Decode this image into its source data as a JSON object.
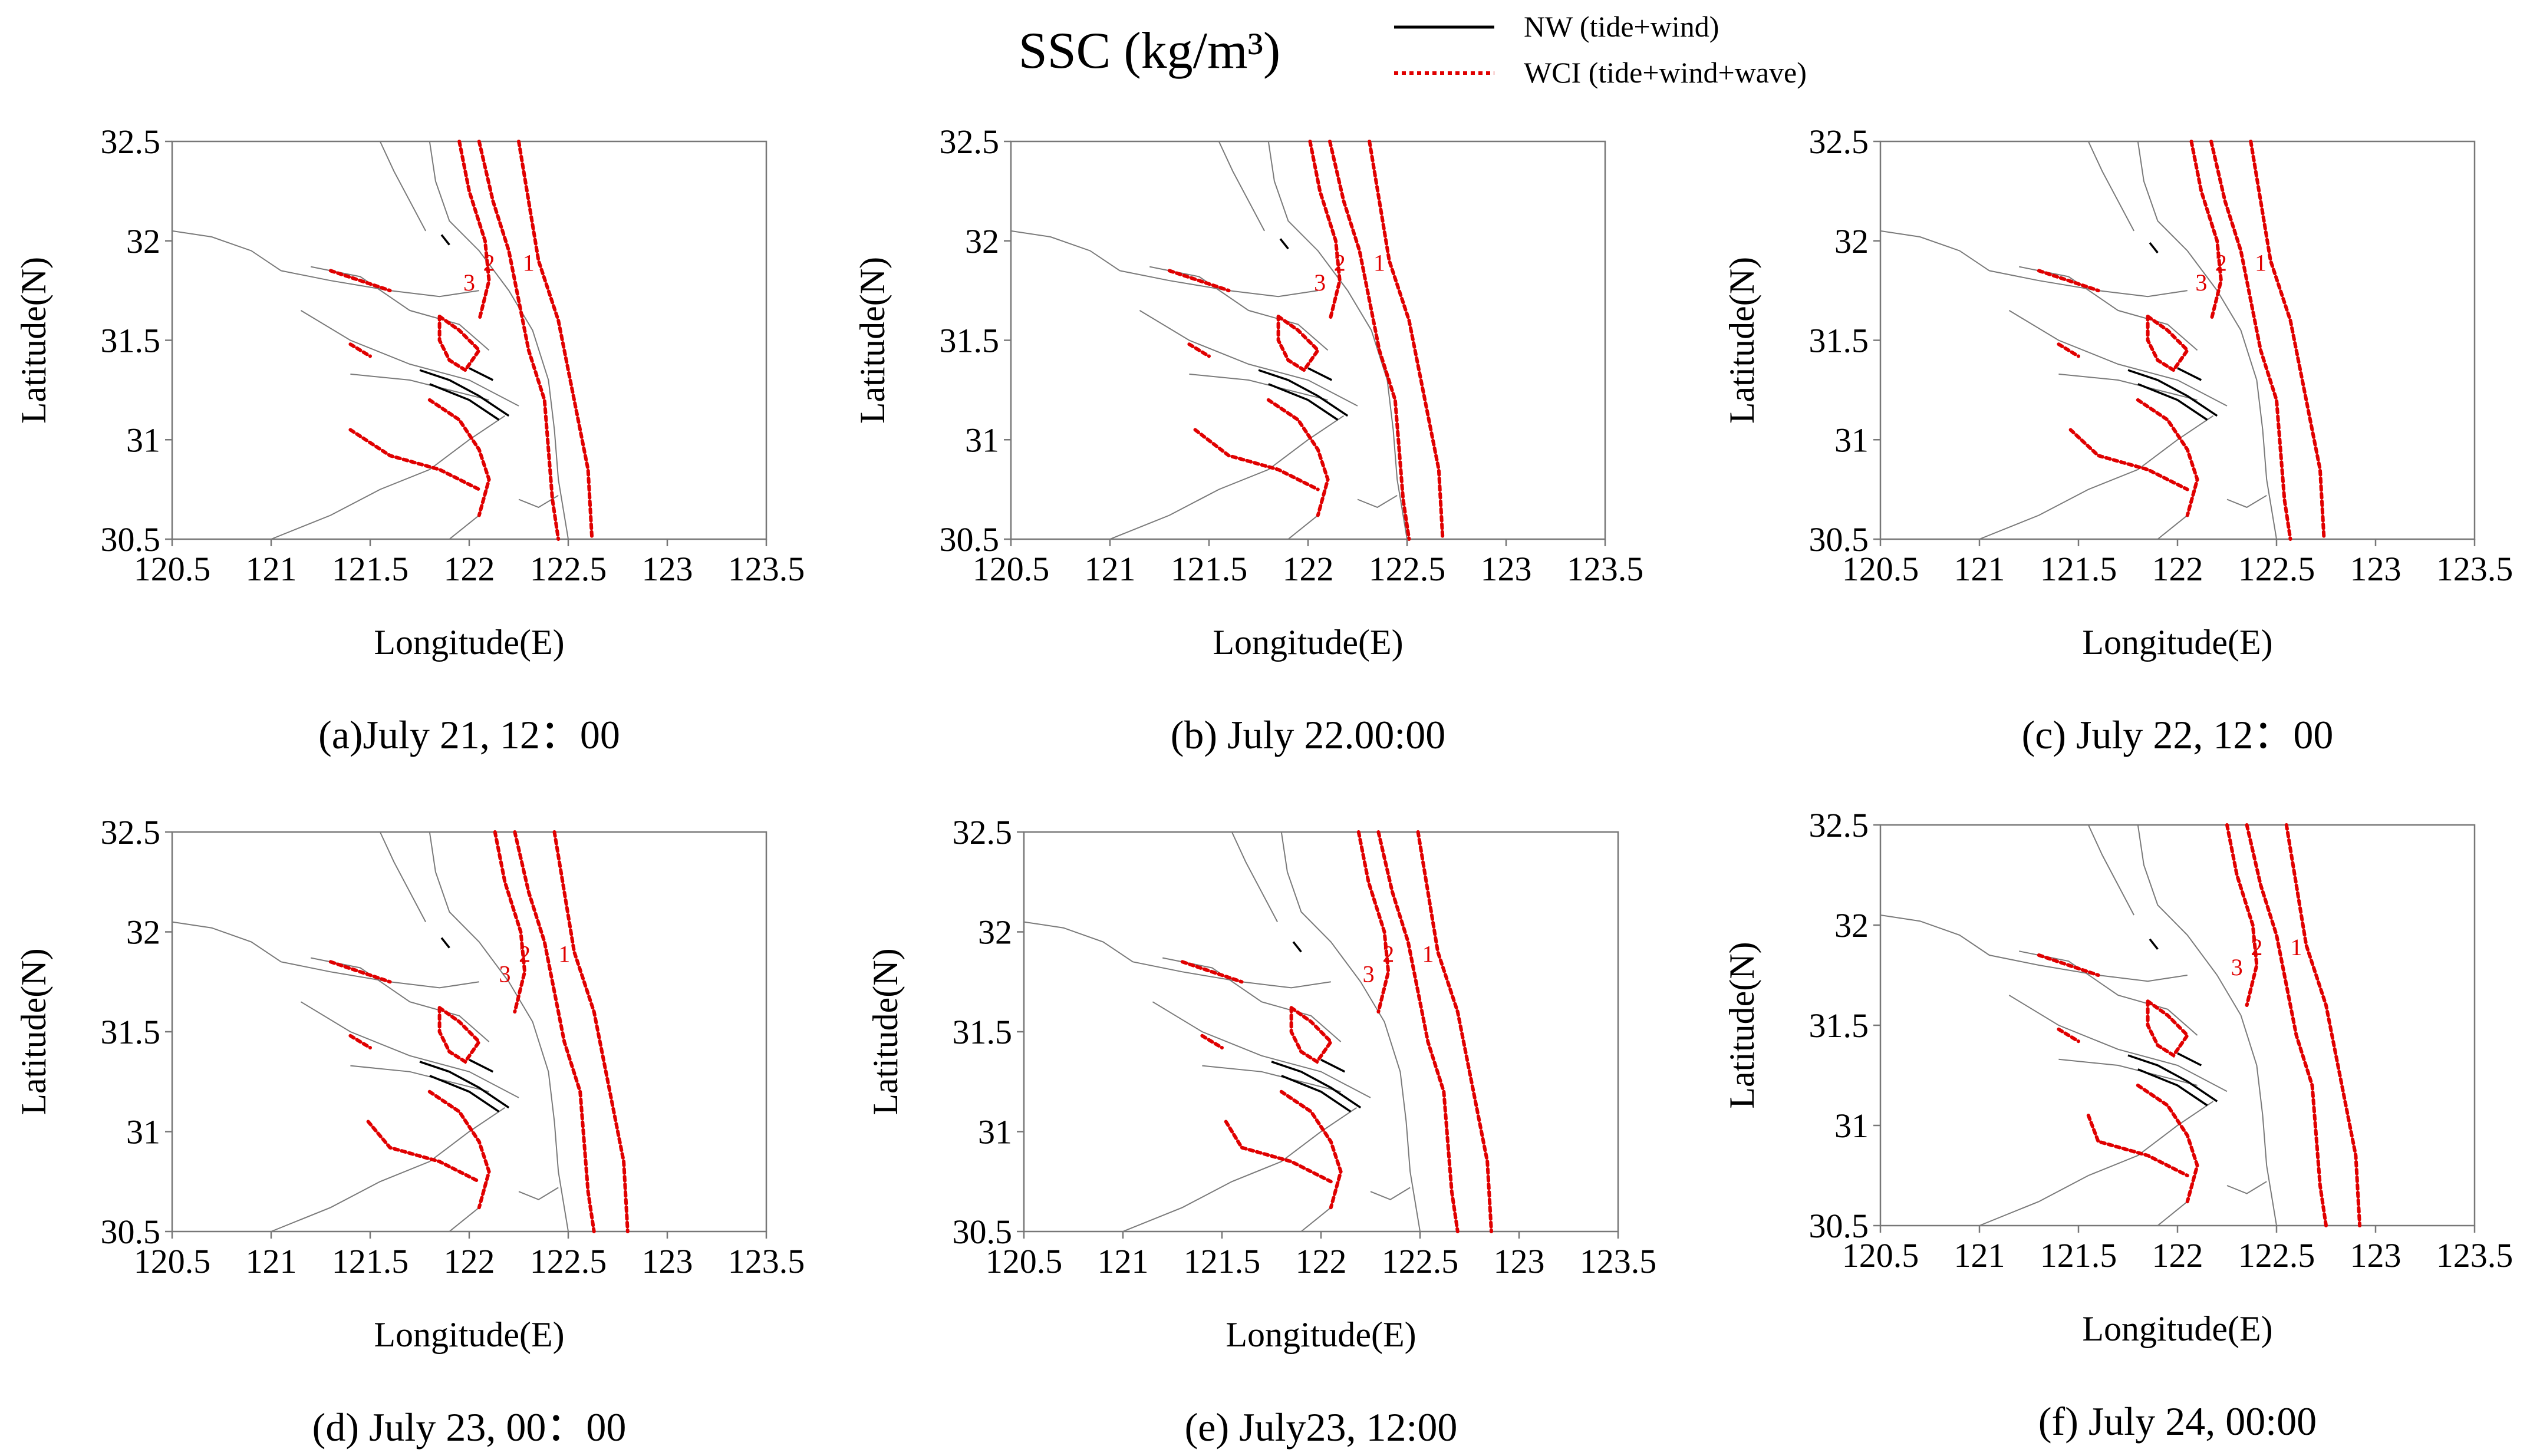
{
  "figure": {
    "title": "SSC (kg/m³)",
    "legend": [
      {
        "label": "NW (tide+wind)",
        "color": "#000000",
        "style": "solid"
      },
      {
        "label": "WCI (tide+wind+wave)",
        "color": "#e00000",
        "style": "dotted"
      }
    ]
  },
  "chart_data": [
    {
      "type": "contour",
      "caption": "(a)July 21, 12：00",
      "xlabel": "Longitude(E)",
      "ylabel": "Latitude(N)",
      "xlim": [
        120.5,
        123.5
      ],
      "ylim": [
        30.5,
        32.5
      ],
      "xticks": [
        "120.5",
        "121",
        "121.5",
        "122",
        "122.5",
        "123",
        "123.5"
      ],
      "yticks": [
        "32.5",
        "32",
        "31.5",
        "31",
        "30.5"
      ],
      "contour_labels": [
        "1",
        "2",
        "3"
      ],
      "series": [
        {
          "name": "NW (tide+wind)"
        },
        {
          "name": "WCI (tide+wind+wave)"
        }
      ]
    },
    {
      "type": "contour",
      "caption": "(b) July 22.00:00",
      "xlabel": "Longitude(E)",
      "ylabel": "Latitude(N)",
      "xlim": [
        120.5,
        123.5
      ],
      "ylim": [
        30.5,
        32.5
      ],
      "xticks": [
        "120.5",
        "121",
        "121.5",
        "122",
        "122.5",
        "123",
        "123.5"
      ],
      "yticks": [
        "32.5",
        "32",
        "31.5",
        "31",
        "30.5"
      ],
      "contour_labels": [
        "1",
        "2",
        "3"
      ],
      "series": [
        {
          "name": "NW (tide+wind)"
        },
        {
          "name": "WCI (tide+wind+wave)"
        }
      ]
    },
    {
      "type": "contour",
      "caption": "(c) July 22, 12：00",
      "xlabel": "Longitude(E)",
      "ylabel": "Latitude(N)",
      "xlim": [
        120.5,
        123.5
      ],
      "ylim": [
        30.5,
        32.5
      ],
      "xticks": [
        "120.5",
        "121",
        "121.5",
        "122",
        "122.5",
        "123",
        "123.5"
      ],
      "yticks": [
        "32.5",
        "32",
        "31.5",
        "31",
        "30.5"
      ],
      "contour_labels": [
        "1",
        "2",
        "3"
      ],
      "series": [
        {
          "name": "NW (tide+wind)"
        },
        {
          "name": "WCI (tide+wind+wave)"
        }
      ]
    },
    {
      "type": "contour",
      "caption": "(d) July 23, 00：00",
      "xlabel": "Longitude(E)",
      "ylabel": "Latitude(N)",
      "xlim": [
        120.5,
        123.5
      ],
      "ylim": [
        30.5,
        32.5
      ],
      "xticks": [
        "120.5",
        "121",
        "121.5",
        "122",
        "122.5",
        "123",
        "123.5"
      ],
      "yticks": [
        "32.5",
        "32",
        "31.5",
        "31",
        "30.5"
      ],
      "contour_labels": [
        "1",
        "2",
        "3"
      ],
      "series": [
        {
          "name": "NW (tide+wind)"
        },
        {
          "name": "WCI (tide+wind+wave)"
        }
      ]
    },
    {
      "type": "contour",
      "caption": "(e) July23, 12:00",
      "xlabel": "Longitude(E)",
      "ylabel": "Latitude(N)",
      "xlim": [
        120.5,
        123.5
      ],
      "ylim": [
        30.5,
        32.5
      ],
      "xticks": [
        "120.5",
        "121",
        "121.5",
        "122",
        "122.5",
        "123",
        "123.5"
      ],
      "yticks": [
        "32.5",
        "32",
        "31.5",
        "31",
        "30.5"
      ],
      "contour_labels": [
        "1",
        "2",
        "3"
      ],
      "series": [
        {
          "name": "NW (tide+wind)"
        },
        {
          "name": "WCI (tide+wind+wave)"
        }
      ]
    },
    {
      "type": "contour",
      "caption": "(f) July 24, 00:00",
      "xlabel": "Longitude(E)",
      "ylabel": "Latitude(N)",
      "xlim": [
        120.5,
        123.5
      ],
      "ylim": [
        30.5,
        32.5
      ],
      "xticks": [
        "120.5",
        "121",
        "121.5",
        "122",
        "122.5",
        "123",
        "123.5"
      ],
      "yticks": [
        "32.5",
        "32",
        "31.5",
        "31",
        "30.5"
      ],
      "contour_labels": [
        "1",
        "2",
        "3"
      ],
      "series": [
        {
          "name": "NW (tide+wind)"
        },
        {
          "name": "WCI (tide+wind+wave)"
        }
      ]
    }
  ]
}
